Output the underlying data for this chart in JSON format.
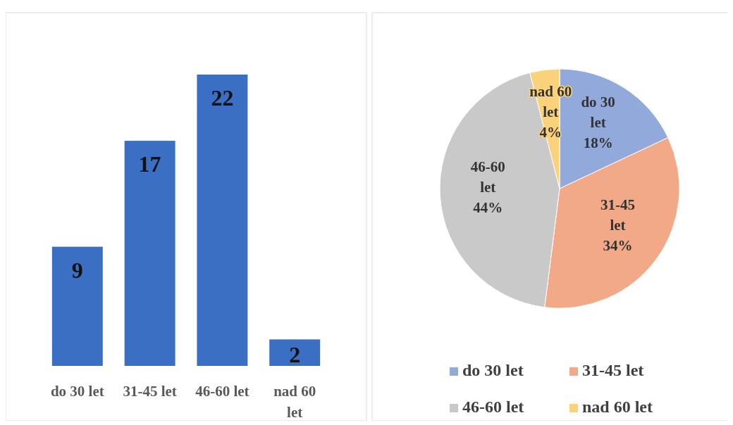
{
  "chart_data": [
    {
      "type": "bar",
      "categories": [
        "do 30 let",
        "31-45 let",
        "46-60 let",
        "nad 60 let"
      ],
      "values": [
        9,
        17,
        22,
        2
      ],
      "color": "#3b6fc4",
      "data_labels": true
    },
    {
      "type": "pie",
      "categories": [
        "do 30 let",
        "31-45 let",
        "46-60 let",
        "nad 60 let"
      ],
      "values": [
        18,
        34,
        44,
        4
      ],
      "colors": [
        "#92a9dc",
        "#f2a987",
        "#c9c9c9",
        "#fbd27c"
      ],
      "value_labels": [
        "18%",
        "34%",
        "44%",
        "4%"
      ],
      "legend": "bottom"
    }
  ]
}
